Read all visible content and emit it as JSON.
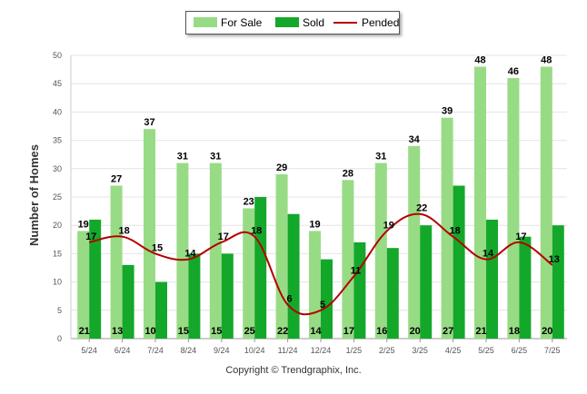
{
  "legend": {
    "for_sale": "For Sale",
    "sold": "Sold",
    "pended": "Pended"
  },
  "footer": "Copyright © Trendgraphix, Inc.",
  "colors": {
    "for_sale": "#98DB85",
    "sold": "#14A82B",
    "pended": "#B40000",
    "grid": "#E4E4E4"
  },
  "chart_data": {
    "type": "bar",
    "ylabel": "Number of Homes",
    "xlabel": "",
    "ylim": [
      0,
      50
    ],
    "yticks": [
      0,
      5,
      10,
      15,
      20,
      25,
      30,
      35,
      40,
      45,
      50
    ],
    "grid": true,
    "legend_position": "top-center",
    "categories": [
      "5/24",
      "6/24",
      "7/24",
      "8/24",
      "9/24",
      "10/24",
      "11/24",
      "12/24",
      "1/25",
      "2/25",
      "3/25",
      "4/25",
      "5/25",
      "6/25",
      "7/25"
    ],
    "series": [
      {
        "name": "For Sale",
        "kind": "bar",
        "values": [
          19,
          27,
          37,
          31,
          31,
          23,
          29,
          19,
          28,
          31,
          34,
          39,
          48,
          46,
          48
        ]
      },
      {
        "name": "Sold",
        "kind": "bar",
        "values": [
          21,
          13,
          10,
          15,
          15,
          25,
          22,
          14,
          17,
          16,
          20,
          27,
          21,
          18,
          20
        ]
      },
      {
        "name": "Pended",
        "kind": "line",
        "values": [
          17,
          18,
          15,
          14,
          17,
          18,
          6,
          5,
          11,
          19,
          22,
          18,
          14,
          17,
          13
        ]
      }
    ]
  }
}
